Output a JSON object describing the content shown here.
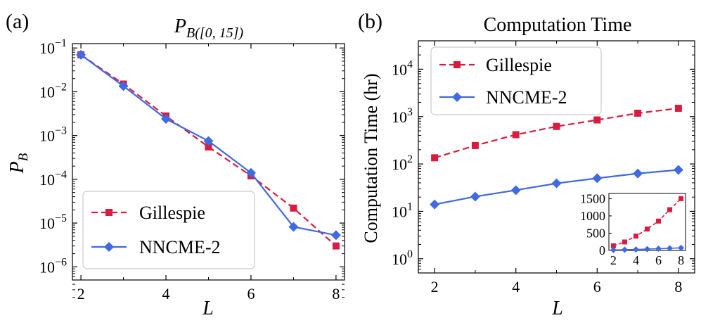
{
  "colors": {
    "gillespie": "#d81c3f",
    "nncme": "#4169e1"
  },
  "chart_data": [
    {
      "type": "line",
      "panel_label": "(a)",
      "title": "P_{B([0, 15])}",
      "title_main": "P",
      "title_sub": "B([0, 15])",
      "xlabel": "L",
      "ylabel_main": "P",
      "ylabel_sub": "B",
      "yscale": "log",
      "xlim": [
        1.8,
        8.2
      ],
      "ylim_log10": [
        -6.3,
        -0.9
      ],
      "xticks": [
        2,
        4,
        6,
        8
      ],
      "xtick_labels": [
        "2",
        "4",
        "6",
        "8"
      ],
      "yticks_log10": [
        -6,
        -5,
        -4,
        -3,
        -2,
        -1
      ],
      "ytick_base": "10",
      "ytick_exps": [
        "−6",
        "−5",
        "−4",
        "−3",
        "−2",
        "−1"
      ],
      "legend_position": "lower-left",
      "x": [
        2,
        3,
        4,
        5,
        6,
        7,
        8
      ],
      "series": [
        {
          "name": "Gillespie",
          "style": "dashed",
          "marker": "square",
          "values": [
            0.07,
            0.015,
            0.0028,
            0.00055,
            0.00012,
            2.2e-05,
            3e-06
          ]
        },
        {
          "name": "NNCME-2",
          "style": "solid",
          "marker": "diamond",
          "values": [
            0.07,
            0.0135,
            0.0024,
            0.00075,
            0.00014,
            8.2e-06,
            5.3e-06
          ]
        }
      ]
    },
    {
      "type": "line",
      "panel_label": "(b)",
      "title": "Computation Time",
      "xlabel": "L",
      "ylabel": "Computation Time (hr)",
      "yscale": "log",
      "xlim": [
        1.6,
        8.4
      ],
      "ylim_log10": [
        -0.3,
        4.6
      ],
      "xticks": [
        2,
        4,
        6,
        8
      ],
      "xtick_labels": [
        "2",
        "4",
        "6",
        "8"
      ],
      "yticks_log10": [
        0,
        1,
        2,
        3,
        4
      ],
      "ytick_base": "10",
      "ytick_exps": [
        "0",
        "1",
        "2",
        "3",
        "4"
      ],
      "legend_position": "top-left",
      "x": [
        2,
        3,
        4,
        5,
        6,
        7,
        8
      ],
      "series": [
        {
          "name": "Gillespie",
          "style": "dashed",
          "marker": "square",
          "values": [
            135,
            245,
            415,
            620,
            850,
            1180,
            1500
          ]
        },
        {
          "name": "NNCME-2",
          "style": "solid",
          "marker": "diamond",
          "values": [
            14,
            20.5,
            28,
            39,
            50,
            63,
            75
          ]
        }
      ],
      "inset": {
        "yscale": "linear",
        "xlim": [
          1.6,
          8.4
        ],
        "ylim": [
          0,
          1650
        ],
        "xticks": [
          2,
          4,
          6,
          8
        ],
        "xtick_labels": [
          "2",
          "4",
          "6",
          "8"
        ],
        "yticks": [
          0,
          500,
          1000,
          1500
        ],
        "ytick_labels": [
          "0",
          "500",
          "1000",
          "1500"
        ]
      }
    }
  ]
}
